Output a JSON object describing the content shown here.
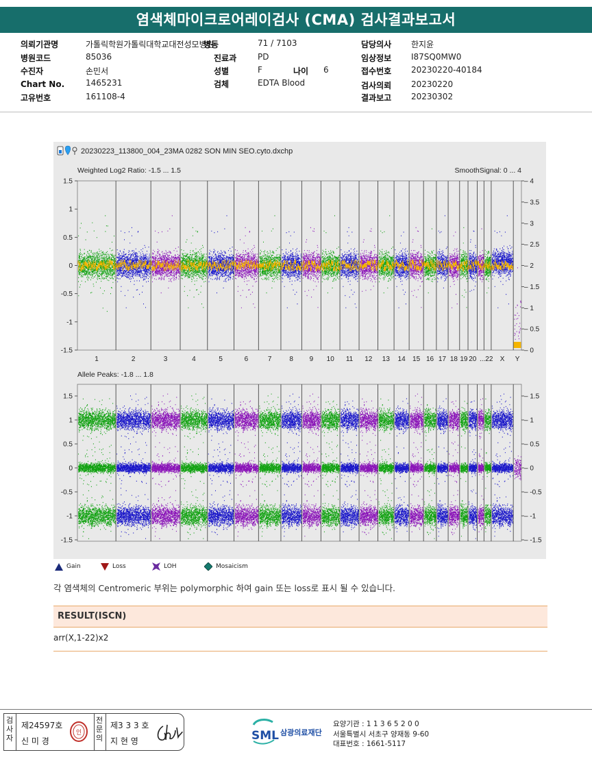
{
  "report": {
    "title": "염색체마이크로어레이검사 (CMA) 검사결과보고서"
  },
  "patient_info": {
    "institution_label": "의뢰기관명",
    "institution_value": "가톨릭학원가톨릭대학교대전성모병원",
    "ward_label": "병동",
    "ward_value": "71 / 7103",
    "doctor_label": "담당의사",
    "doctor_value": "한지윤",
    "hospital_code_label": "병원코드",
    "hospital_code_value": "85036",
    "department_label": "진료과",
    "department_value": "PD",
    "clinical_label": "임상정보",
    "clinical_value": "I87SQ0MW0",
    "patient_label": "수진자",
    "patient_value": "손민서",
    "sex_label": "성별",
    "sex_value": "F",
    "age_label": "나이",
    "age_value": "6",
    "receipt_label": "접수번호",
    "receipt_value": "20230220-40184",
    "chart_label": "Chart No.",
    "chart_value": "1465231",
    "specimen_label": "검체",
    "specimen_value": "EDTA Blood",
    "request_label": "검사의뢰",
    "request_value": "20230220",
    "unique_label": "고유번호",
    "unique_value": "161108-4",
    "report_label": "결과보고",
    "report_value": "20230302"
  },
  "plot": {
    "file_name": "20230223_113800_004_23MA 0282 SON MIN SEO.cyto.dxchp",
    "top_title": "Weighted Log2 Ratio: -1.5 ... 1.5",
    "top_right_title": "SmoothSignal: 0 ... 4",
    "bottom_title": "Allele Peaks: -1.8 ... 1.8",
    "top_left_ticks": [
      "1.5",
      "1",
      "0.5",
      "0",
      "-0.5",
      "-1",
      "-1.5"
    ],
    "top_right_ticks": [
      "4",
      "3.5",
      "3",
      "2.5",
      "2",
      "1.5",
      "1",
      "0.5",
      "0"
    ],
    "bottom_left_ticks": [
      "1.5",
      "1",
      "0.5",
      "0",
      "-0.5",
      "-1",
      "-1.5"
    ],
    "bottom_right_ticks": [
      "1.5",
      "1",
      "0.5",
      "0",
      "-0.5",
      "-1",
      "-1.5"
    ],
    "chromosome_labels": [
      "1",
      "2",
      "3",
      "4",
      "5",
      "6",
      "7",
      "8",
      "9",
      "10",
      "11",
      "12",
      "13",
      "14",
      "15",
      "16",
      "17",
      "18",
      "19",
      "20",
      "...22",
      "X",
      "Y"
    ],
    "colors": {
      "green": "#12a212",
      "blue": "#1a17c9",
      "purple": "#8a14b8",
      "orange": "#f4b400",
      "panel": "#e9e9e9"
    }
  },
  "legend": [
    {
      "label": "Gain",
      "icon": "triangle-up-icon",
      "color": "#1a2a7a"
    },
    {
      "label": "Loss",
      "icon": "triangle-down-icon",
      "color": "#a01818"
    },
    {
      "label": "LOH",
      "icon": "loh-icon",
      "color": "#6a2ca0"
    },
    {
      "label": "Mosaicism",
      "icon": "diamond-icon",
      "color": "#157a6e"
    }
  ],
  "note": "각 염색체의 Centromeric 부위는 polymorphic 하여 gain 또는 loss로 표시 될 수 있습니다.",
  "result": {
    "header": "RESULT(ISCN)",
    "value": "arr(X,1-22)x2"
  },
  "footer": {
    "tester_label": "검사자",
    "tester_license": "제24597호",
    "tester_name": "신 미 경",
    "approver_label": "전문의",
    "approver_license": "제3 3 3 호",
    "approver_name": "지 현 영",
    "stamp_text": "인",
    "institution_name": "삼광의료재단",
    "logo_text": "SML",
    "care_code": "요양기관 : 1 1 3 6 5 2 0 0",
    "address": "서울특별시 서초구 양재동 9-60",
    "phone": "대표번호 : 1661-5117"
  }
}
